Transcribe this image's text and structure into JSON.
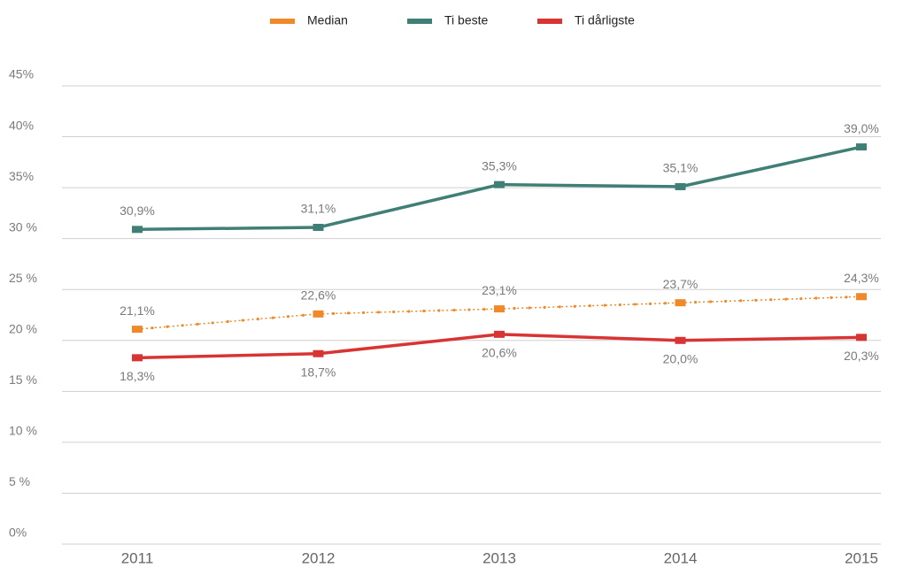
{
  "chart_data": {
    "type": "line",
    "categories": [
      "2011",
      "2012",
      "2013",
      "2014",
      "2015"
    ],
    "series": [
      {
        "name": "Median",
        "color": "#f0892a",
        "line_style": "dotted",
        "label_position": "above",
        "values": [
          21.1,
          22.6,
          23.1,
          23.7,
          24.3
        ],
        "value_labels": [
          "21,1%",
          "22,6%",
          "23,1%",
          "23,7%",
          "24,3%"
        ]
      },
      {
        "name": "Ti beste",
        "color": "#3f7f75",
        "line_style": "solid",
        "label_position": "above",
        "values": [
          30.9,
          31.1,
          35.3,
          35.1,
          39.0
        ],
        "value_labels": [
          "30,9%",
          "31,1%",
          "35,3%",
          "35,1%",
          "39,0%"
        ]
      },
      {
        "name": "Ti dårligste",
        "color": "#d83434",
        "line_style": "solid",
        "label_position": "below",
        "values": [
          18.3,
          18.7,
          20.6,
          20.0,
          20.3
        ],
        "value_labels": [
          "18,3%",
          "18,7%",
          "20,6%",
          "20,0%",
          "20,3%"
        ]
      }
    ],
    "ylim": [
      0,
      45
    ],
    "yticks": [
      {
        "value": 0,
        "label": "0%"
      },
      {
        "value": 5,
        "label": "5 %"
      },
      {
        "value": 10,
        "label": "10 %"
      },
      {
        "value": 15,
        "label": "15 %"
      },
      {
        "value": 20,
        "label": "20 %"
      },
      {
        "value": 25,
        "label": "25 %"
      },
      {
        "value": 30,
        "label": "30 %"
      },
      {
        "value": 35,
        "label": "35%"
      },
      {
        "value": 40,
        "label": "40%"
      },
      {
        "value": 45,
        "label": "45%"
      }
    ],
    "grid": true,
    "legend": "top"
  }
}
